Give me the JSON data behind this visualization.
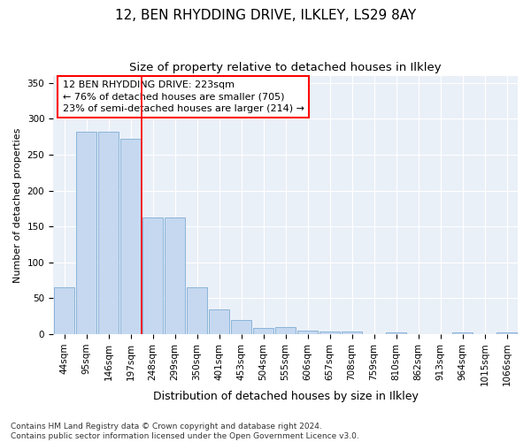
{
  "title": "12, BEN RHYDDING DRIVE, ILKLEY, LS29 8AY",
  "subtitle": "Size of property relative to detached houses in Ilkley",
  "xlabel": "Distribution of detached houses by size in Ilkley",
  "ylabel": "Number of detached properties",
  "categories": [
    "44sqm",
    "95sqm",
    "146sqm",
    "197sqm",
    "248sqm",
    "299sqm",
    "350sqm",
    "401sqm",
    "453sqm",
    "504sqm",
    "555sqm",
    "606sqm",
    "657sqm",
    "708sqm",
    "759sqm",
    "810sqm",
    "862sqm",
    "913sqm",
    "964sqm",
    "1015sqm",
    "1066sqm"
  ],
  "values": [
    65,
    282,
    282,
    272,
    163,
    163,
    65,
    35,
    20,
    9,
    10,
    5,
    4,
    4,
    0,
    3,
    0,
    0,
    2,
    0,
    2
  ],
  "bar_color": "#c5d8f0",
  "bar_edge_color": "#8ab4d8",
  "property_line_x": 3.5,
  "property_line_label": "12 BEN RHYDDING DRIVE: 223sqm",
  "annotation_line1": "← 76% of detached houses are smaller (705)",
  "annotation_line2": "23% of semi-detached houses are larger (214) →",
  "ylim": [
    0,
    360
  ],
  "yticks": [
    0,
    50,
    100,
    150,
    200,
    250,
    300,
    350
  ],
  "bg_color": "#eaf0f8",
  "grid_color": "#ffffff",
  "footer": "Contains HM Land Registry data © Crown copyright and database right 2024.\nContains public sector information licensed under the Open Government Licence v3.0.",
  "title_fontsize": 11,
  "subtitle_fontsize": 9.5,
  "xlabel_fontsize": 9,
  "ylabel_fontsize": 8,
  "tick_fontsize": 7.5,
  "annotation_fontsize": 8,
  "footer_fontsize": 6.5
}
